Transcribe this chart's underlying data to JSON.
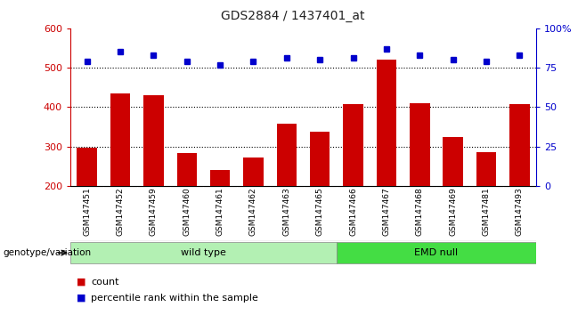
{
  "title": "GDS2884 / 1437401_at",
  "samples": [
    "GSM147451",
    "GSM147452",
    "GSM147459",
    "GSM147460",
    "GSM147461",
    "GSM147462",
    "GSM147463",
    "GSM147465",
    "GSM147466",
    "GSM147467",
    "GSM147468",
    "GSM147469",
    "GSM147481",
    "GSM147493"
  ],
  "counts": [
    297,
    435,
    430,
    284,
    240,
    273,
    358,
    338,
    407,
    521,
    410,
    325,
    286,
    407
  ],
  "percentile_ranks": [
    79,
    85,
    83,
    79,
    77,
    79,
    81,
    80,
    81,
    87,
    83,
    80,
    79,
    83
  ],
  "groups": [
    {
      "label": "wild type",
      "start": 0,
      "end": 8,
      "color": "#b3f0b3"
    },
    {
      "label": "EMD null",
      "start": 8,
      "end": 14,
      "color": "#44dd44"
    }
  ],
  "ylim_left": [
    200,
    600
  ],
  "ylim_right": [
    0,
    100
  ],
  "yticks_left": [
    200,
    300,
    400,
    500,
    600
  ],
  "yticks_right": [
    0,
    25,
    50,
    75,
    100
  ],
  "bar_color": "#cc0000",
  "dot_color": "#0000cc",
  "grid_color": "#000000",
  "background_color": "#ffffff",
  "label_area_color": "#c8c8c8",
  "legend_count_color": "#cc0000",
  "legend_pct_color": "#0000cc"
}
